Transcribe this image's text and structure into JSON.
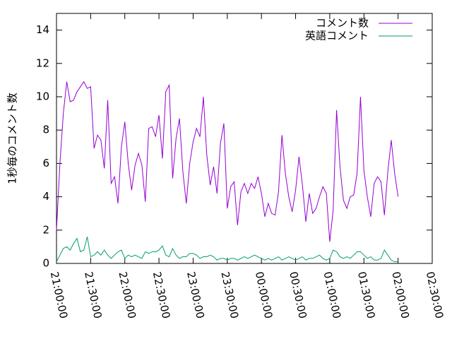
{
  "chart_data": {
    "type": "line",
    "y_label": "1秒毎のコメント数",
    "x": [
      "21:00:00",
      "21:03:00",
      "21:06:00",
      "21:09:00",
      "21:12:00",
      "21:15:00",
      "21:18:00",
      "21:21:00",
      "21:24:00",
      "21:27:00",
      "21:30:00",
      "21:33:00",
      "21:36:00",
      "21:39:00",
      "21:42:00",
      "21:45:00",
      "21:48:00",
      "21:51:00",
      "21:54:00",
      "21:57:00",
      "22:00:00",
      "22:03:00",
      "22:06:00",
      "22:09:00",
      "22:12:00",
      "22:15:00",
      "22:18:00",
      "22:21:00",
      "22:24:00",
      "22:27:00",
      "22:30:00",
      "22:33:00",
      "22:36:00",
      "22:39:00",
      "22:42:00",
      "22:45:00",
      "22:48:00",
      "22:51:00",
      "22:54:00",
      "22:57:00",
      "23:00:00",
      "23:03:00",
      "23:06:00",
      "23:09:00",
      "23:12:00",
      "23:15:00",
      "23:18:00",
      "23:21:00",
      "23:24:00",
      "23:27:00",
      "23:30:00",
      "23:33:00",
      "23:36:00",
      "23:39:00",
      "23:42:00",
      "23:45:00",
      "23:48:00",
      "23:51:00",
      "23:54:00",
      "23:57:00",
      "00:00:00",
      "00:03:00",
      "00:06:00",
      "00:09:00",
      "00:12:00",
      "00:15:00",
      "00:18:00",
      "00:21:00",
      "00:24:00",
      "00:27:00",
      "00:30:00",
      "00:33:00",
      "00:36:00",
      "00:39:00",
      "00:42:00",
      "00:45:00",
      "00:48:00",
      "00:51:00",
      "00:54:00",
      "00:57:00",
      "01:00:00",
      "01:03:00",
      "01:06:00",
      "01:09:00",
      "01:12:00",
      "01:15:00",
      "01:18:00",
      "01:21:00",
      "01:24:00",
      "01:27:00",
      "01:30:00",
      "01:33:00",
      "01:36:00",
      "01:39:00",
      "01:42:00",
      "01:45:00",
      "01:48:00",
      "01:51:00",
      "01:54:00",
      "01:57:00",
      "02:00:00"
    ],
    "series": [
      {
        "name": "コメント数",
        "color": "#9400d3",
        "values": [
          2,
          6,
          9,
          10.9,
          9.7,
          9.8,
          10.3,
          10.6,
          10.9,
          10.5,
          10.6,
          6.9,
          7.7,
          7.4,
          5.7,
          9.8,
          4.8,
          5.2,
          3.6,
          7,
          8.5,
          6,
          4.4,
          5.9,
          6.6,
          5.9,
          3.7,
          8.1,
          8.2,
          7.6,
          8.9,
          6.3,
          10.3,
          10.7,
          5.1,
          7.5,
          8.7,
          5.5,
          3.6,
          6,
          7.3,
          8.1,
          7.6,
          10,
          6.5,
          4.7,
          5.8,
          4.2,
          7.2,
          8.4,
          3.3,
          4.6,
          4.9,
          2.3,
          4.3,
          4.8,
          4.2,
          4.8,
          4.5,
          5.2,
          4.2,
          2.8,
          3.6,
          3,
          2.9,
          4.3,
          7.7,
          5.4,
          4,
          3.1,
          4.4,
          6.4,
          4.7,
          2.5,
          4.2,
          3,
          3.3,
          4,
          4.6,
          4.2,
          1.3,
          3.2,
          9.2,
          5.8,
          3.8,
          3.3,
          4,
          4.1,
          5.4,
          10,
          5.6,
          4,
          2.8,
          4.8,
          5.2,
          4.9,
          2.9,
          5.5,
          7.4,
          5.4,
          4
        ]
      },
      {
        "name": "英語コメント",
        "color": "#009e73",
        "values": [
          0.1,
          0.5,
          0.9,
          1.0,
          0.8,
          1.2,
          1.5,
          0.7,
          0.8,
          1.6,
          0.4,
          0.5,
          0.7,
          0.5,
          0.8,
          0.5,
          0.3,
          0.5,
          0.7,
          0.8,
          0.3,
          0.5,
          0.4,
          0.5,
          0.4,
          0.3,
          0.7,
          0.6,
          0.7,
          0.7,
          0.8,
          1.05,
          0.5,
          0.4,
          0.9,
          0.5,
          0.3,
          0.4,
          0.4,
          0.6,
          0.6,
          0.5,
          0.3,
          0.4,
          0.4,
          0.5,
          0.4,
          0.2,
          0.3,
          0.3,
          0.2,
          0.3,
          0.3,
          0.2,
          0.3,
          0.4,
          0.3,
          0.4,
          0.5,
          0.4,
          0.3,
          0.2,
          0.3,
          0.2,
          0.3,
          0.4,
          0.2,
          0.3,
          0.4,
          0.3,
          0.2,
          0.3,
          0.4,
          0.2,
          0.3,
          0.3,
          0.4,
          0.5,
          0.3,
          0.2,
          0.3,
          0.8,
          0.7,
          0.4,
          0.3,
          0.4,
          0.3,
          0.5,
          0.7,
          0.7,
          0.5,
          0.3,
          0.4,
          0.2,
          0.2,
          0.3,
          0.8,
          0.5,
          0.2,
          0.1,
          0.1
        ]
      }
    ],
    "xlim": [
      "21:00:00",
      "02:30:00"
    ],
    "xticks": [
      "21:00:00",
      "21:30:00",
      "22:00:00",
      "22:30:00",
      "23:00:00",
      "23:30:00",
      "00:00:00",
      "00:30:00",
      "01:00:00",
      "01:30:00",
      "02:00:00",
      "02:30:00"
    ],
    "ylim": [
      0,
      15
    ],
    "yticks": [
      0,
      2,
      4,
      6,
      8,
      10,
      12,
      14
    ],
    "legend": "top-right",
    "grid": false
  }
}
